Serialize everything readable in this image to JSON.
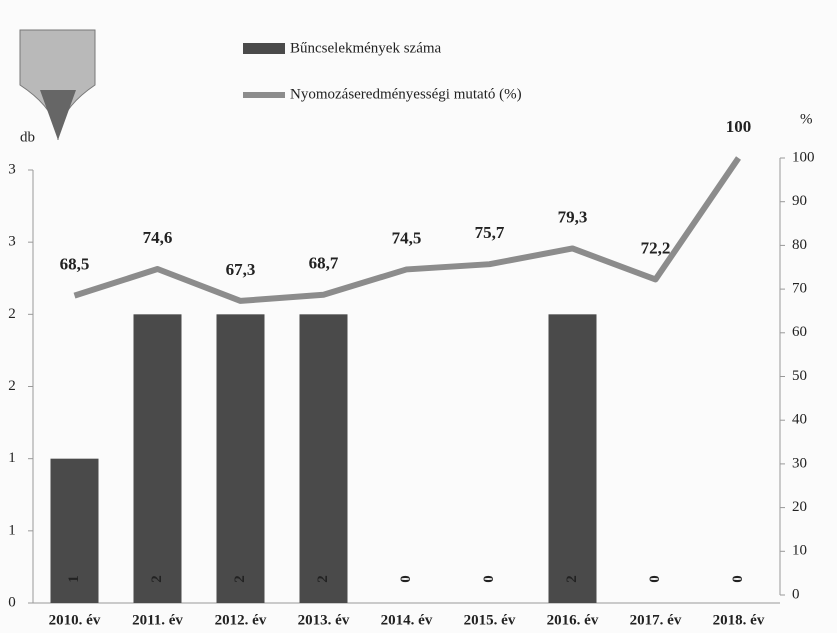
{
  "chart_data": {
    "type": "combo",
    "categories": [
      "2010. év",
      "2011. év",
      "2012. év",
      "2013. év",
      "2014. év",
      "2015. év",
      "2016. év",
      "2017. év",
      "2018. év"
    ],
    "series": [
      {
        "name": "Bűncselekmények száma",
        "type": "bar",
        "color": "#4a4a4a",
        "axis": "y",
        "values": [
          1,
          2,
          2,
          2,
          0,
          0,
          2,
          0,
          0
        ]
      },
      {
        "name": "Nyomozáseredményességi mutató (%)",
        "type": "line",
        "color": "#8c8c8c",
        "axis": "y2",
        "values": [
          68.5,
          74.6,
          67.3,
          68.7,
          74.5,
          75.7,
          79.3,
          72.2,
          100
        ],
        "value_labels": [
          "68,5",
          "74,6",
          "67,3",
          "68,7",
          "74,5",
          "75,7",
          "79,3",
          "72,2",
          "100"
        ]
      }
    ],
    "y_label": "db",
    "y2_label": "%",
    "ylim": [
      0,
      3
    ],
    "yticks": [
      0,
      {
        "value": 0.5,
        "label": "1"
      },
      1,
      {
        "value": 1.5,
        "label": "2"
      },
      2,
      {
        "value": 2.5,
        "label": "3"
      },
      3
    ],
    "y2lim": [
      0,
      100
    ],
    "y2ticks": [
      0,
      10,
      20,
      30,
      40,
      50,
      60,
      70,
      80,
      90,
      100
    ],
    "grid": false
  }
}
